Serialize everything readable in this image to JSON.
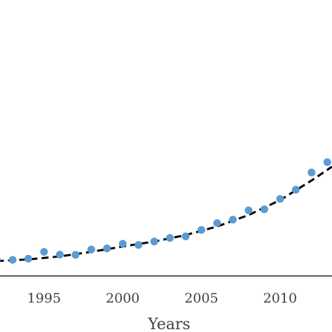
{
  "chart_data": {
    "type": "scatter",
    "xlabel": "Years",
    "ylabel": "",
    "xlim": [
      1992.2,
      2013.3
    ],
    "x_ticks": [
      1995,
      2000,
      2005,
      2010
    ],
    "x_tick_labels": [
      "1995",
      "2000",
      "2005",
      "2010"
    ],
    "ylim": [
      0,
      12
    ],
    "grid": false,
    "series": [
      {
        "kind": "points",
        "color": "#5b9bd5",
        "x": [
          1992,
          1993,
          1994,
          1995,
          1996,
          1997,
          1998,
          1999,
          2000,
          2001,
          2002,
          2003,
          2004,
          2005,
          2006,
          2007,
          2008,
          2009,
          2010,
          2011,
          2012,
          2013
        ],
        "y": [
          0.7,
          0.7,
          0.75,
          1.05,
          0.93,
          0.92,
          1.15,
          1.2,
          1.4,
          1.35,
          1.5,
          1.65,
          1.72,
          2.0,
          2.3,
          2.45,
          2.85,
          2.9,
          3.35,
          3.75,
          4.5,
          4.95
        ]
      },
      {
        "kind": "trendline",
        "style": "dashed",
        "color": "#000000",
        "x": [
          1992,
          1994,
          1996,
          1998,
          2000,
          2002,
          2004,
          2006,
          2008,
          2010,
          2012,
          2013.3
        ],
        "y": [
          0.65,
          0.72,
          0.85,
          1.05,
          1.28,
          1.5,
          1.78,
          2.15,
          2.65,
          3.3,
          4.15,
          4.75
        ]
      }
    ]
  }
}
